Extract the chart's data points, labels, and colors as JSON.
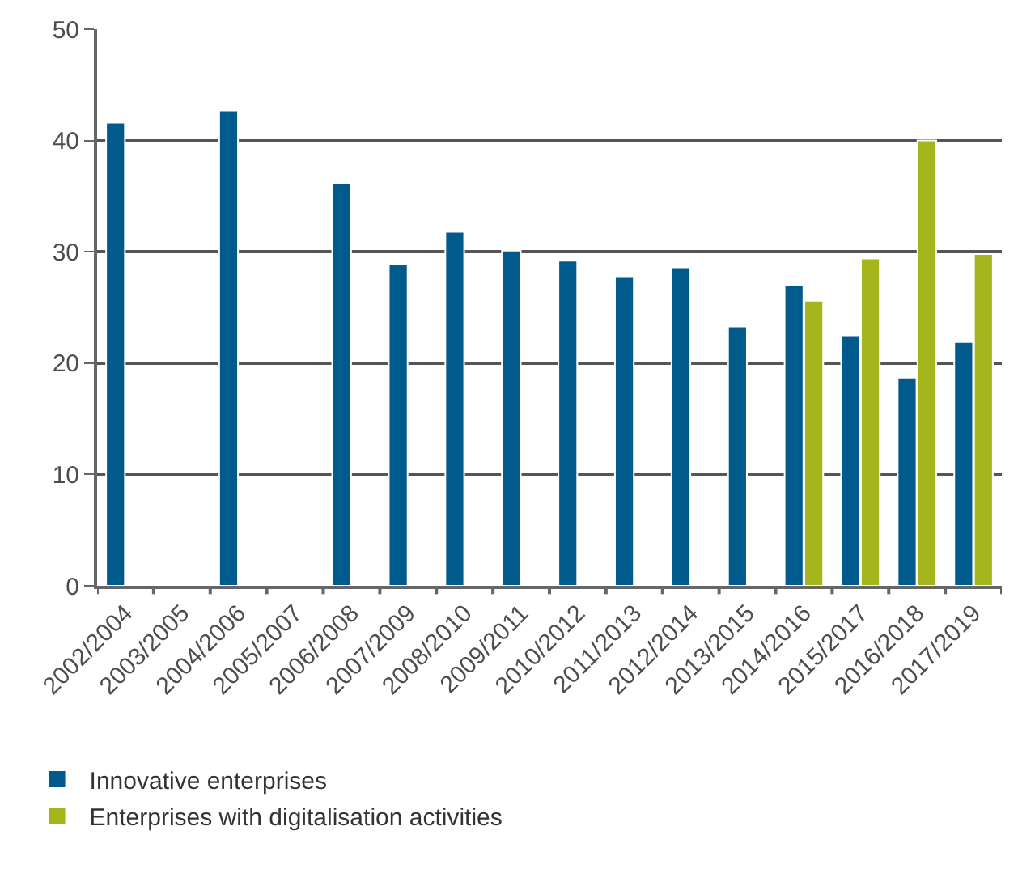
{
  "chart_data": {
    "type": "bar",
    "categories": [
      "2002/2004",
      "2003/2005",
      "2004/2006",
      "2005/2007",
      "2006/2008",
      "2007/2009",
      "2008/2010",
      "2009/2011",
      "2010/2012",
      "2011/2013",
      "2012/2014",
      "2013/2015",
      "2014/2016",
      "2015/2017",
      "2016/2018",
      "2017/2019"
    ],
    "series": [
      {
        "name": "Innovative enterprises",
        "color": "#005a8c",
        "values": [
          41.6,
          null,
          42.7,
          null,
          36.2,
          28.9,
          31.8,
          30.1,
          29.2,
          27.8,
          28.6,
          23.3,
          27.0,
          22.5,
          18.7,
          21.9
        ]
      },
      {
        "name": "Enterprises with digitalisation activities",
        "color": "#a5b61c",
        "values": [
          null,
          null,
          null,
          null,
          null,
          null,
          null,
          null,
          null,
          null,
          null,
          null,
          25.6,
          29.4,
          40.0,
          29.8
        ]
      }
    ],
    "ylim": [
      0,
      50
    ],
    "yticks": [
      0,
      10,
      20,
      30,
      40,
      50
    ],
    "grid": "y",
    "legend": "bottom left"
  }
}
